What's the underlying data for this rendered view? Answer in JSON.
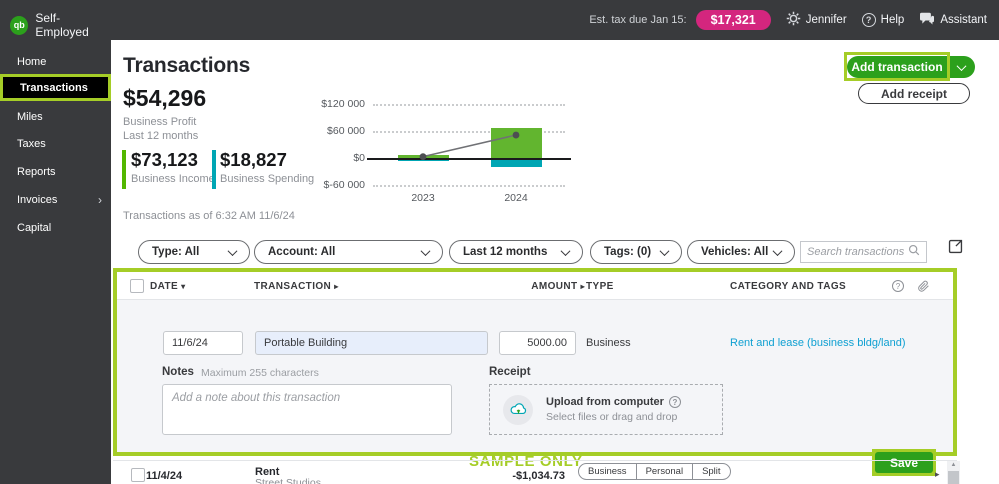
{
  "colors": {
    "brand_green": "#2ca01c",
    "highlight_chartreuse": "#a5cd27",
    "tax_pill_magenta": "#d4267e",
    "income_green": "#53b700",
    "spending_teal": "#00a6b4",
    "category_link_blue": "#0fa0d2",
    "topbar_dark": "#393a3d",
    "panel_gray": "#f4f5f8"
  },
  "icons": {
    "logo_monogram": "qb",
    "sort_desc": "▾",
    "sort_right": "▸",
    "chevron_right": "›",
    "question_mark": "?",
    "row_caret": "▸",
    "scroll_up_arrow": "▲"
  },
  "topbar": {
    "brand": "Self-Employed",
    "est_tax_label": "Est. tax due Jan 15:",
    "est_tax_amount": "$17,321",
    "user_name": "Jennifer",
    "help_label": "Help",
    "assistant_label": "Assistant"
  },
  "sidebar": {
    "items": [
      {
        "label": "Home"
      },
      {
        "label": "Transactions",
        "active": true
      },
      {
        "label": "Miles"
      },
      {
        "label": "Taxes"
      },
      {
        "label": "Reports"
      },
      {
        "label": "Invoices",
        "has_submenu": true
      },
      {
        "label": "Capital"
      }
    ]
  },
  "page": {
    "title": "Transactions",
    "add_transaction_label": "Add transaction",
    "add_receipt_label": "Add receipt",
    "status_line": "Transactions as of 6:32 AM 11/6/24"
  },
  "stats": {
    "profit_amount": "$54,296",
    "profit_label": "Business Profit",
    "profit_sublabel": "Last 12 months",
    "income_amount": "$73,123",
    "income_label": "Business Income",
    "spending_amount": "$18,827",
    "spending_label": "Business Spending"
  },
  "chart_data": {
    "type": "bar",
    "categories": [
      "2023",
      "2024"
    ],
    "series": [
      {
        "name": "Business Income",
        "color": "#62b52f",
        "values": [
          7000,
          66000
        ]
      },
      {
        "name": "Business Spending",
        "color": "#00a6b4",
        "values": [
          -6000,
          -20000
        ]
      }
    ],
    "line": {
      "name": "Profit trend",
      "color": "#707175",
      "dot_color": "#4d4e52",
      "values": [
        3000,
        51000
      ]
    },
    "yticks": [
      "$120 000",
      "$60 000",
      "$0",
      "$-60 000"
    ],
    "ytick_values": [
      120000,
      60000,
      0,
      -60000
    ],
    "ylim": [
      -60000,
      120000
    ],
    "grid": "dotted horizontal, solid zero line",
    "legend": "none"
  },
  "filters": {
    "type": "Type: All",
    "account": "Account: All",
    "period": "Last 12 months",
    "tags": "Tags: (0)",
    "vehicles": "Vehicles: All",
    "search_placeholder": "Search transactions"
  },
  "table": {
    "columns": [
      "DATE",
      "TRANSACTION",
      "AMOUNT",
      "TYPE",
      "CATEGORY AND TAGS"
    ]
  },
  "form": {
    "date_value": "11/6/24",
    "transaction_value": "Portable Building",
    "amount_value": "5000.00",
    "type_value": "Business",
    "category_value": "Rent and lease (business bldg/land)",
    "notes_label": "Notes",
    "notes_hint": "Maximum 255 characters",
    "notes_placeholder": "Add a note about this transaction",
    "receipt_label": "Receipt",
    "upload_title": "Upload from computer",
    "upload_subtitle": "Select files or drag and drop",
    "sample_watermark": "SAMPLE ONLY",
    "save_label": "Save"
  },
  "bottom_row": {
    "date": "11/4/24",
    "name": "Rent",
    "subtext": "Street Studios",
    "amount": "-$1,034.73",
    "type_options": [
      "Business",
      "Personal",
      "Split"
    ]
  }
}
